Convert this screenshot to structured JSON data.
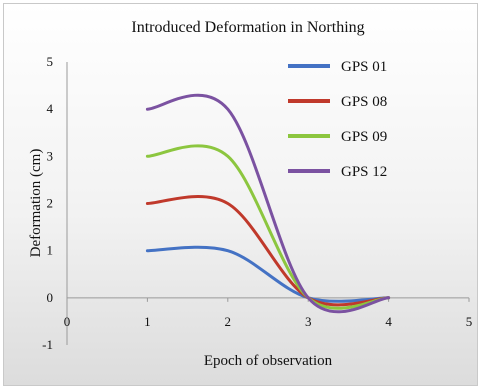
{
  "chart_data": {
    "type": "line",
    "title": "Introduced Deformation in Northing",
    "xlabel": "Epoch of observation",
    "ylabel": "Deformation (cm)",
    "xlim": [
      0,
      5
    ],
    "ylim": [
      -1,
      5
    ],
    "xticks": [
      "0",
      "1",
      "2",
      "3",
      "4",
      "5"
    ],
    "yticks": [
      "-1",
      "0",
      "1",
      "2",
      "3",
      "4",
      "5"
    ],
    "grid": false,
    "legend_position": "top-right",
    "smooth": true,
    "x": [
      1,
      2,
      3,
      4
    ],
    "series": [
      {
        "name": "GPS 01",
        "color": "#4472c4",
        "values": [
          1,
          1,
          0,
          0
        ]
      },
      {
        "name": "GPS 08",
        "color": "#c0392b",
        "values": [
          2,
          2,
          0,
          0
        ]
      },
      {
        "name": "GPS 09",
        "color": "#8cc63f",
        "values": [
          3,
          3,
          0,
          0
        ]
      },
      {
        "name": "GPS 12",
        "color": "#7b52a1",
        "values": [
          4,
          4,
          0,
          0
        ]
      }
    ]
  }
}
